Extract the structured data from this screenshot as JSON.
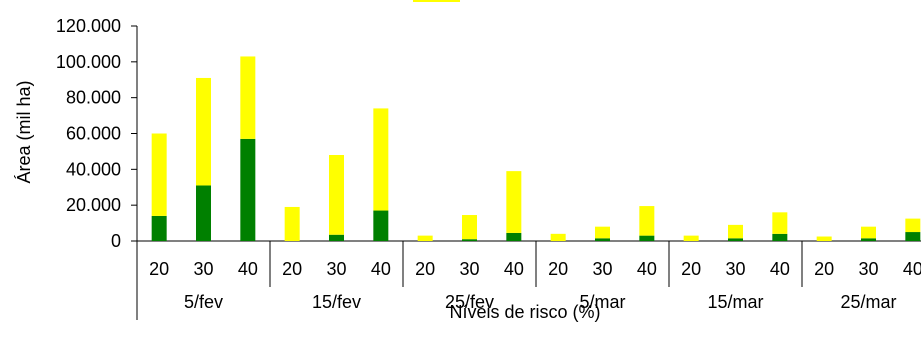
{
  "chart_data": {
    "type": "bar",
    "stacked": true,
    "ylabel": "Área (mil ha)",
    "xlabel": "Níveis de risco (%)",
    "ylim": [
      0,
      120000
    ],
    "y_ticks": [
      "0",
      "20.000",
      "40.000",
      "60.000",
      "80.000",
      "100.000",
      "120.000"
    ],
    "y_tick_values": [
      0,
      20000,
      40000,
      60000,
      80000,
      100000,
      120000
    ],
    "grid": false,
    "groups": [
      "5/fev",
      "15/fev",
      "25/fev",
      "5/mar",
      "15/mar",
      "25/mar"
    ],
    "levels": [
      "20",
      "30",
      "40"
    ],
    "series": [
      {
        "color": "#008000",
        "values": [
          14000,
          31000,
          57000,
          0,
          3500,
          17000,
          0,
          1000,
          4500,
          0,
          1500,
          3000,
          0,
          1500,
          4000,
          0,
          1500,
          5000
        ]
      },
      {
        "color": "#FFFF00",
        "values": [
          46000,
          60000,
          46000,
          19000,
          44500,
          57000,
          3000,
          13500,
          34500,
          4000,
          6500,
          16500,
          3000,
          7500,
          12000,
          2500,
          6500,
          7500
        ]
      }
    ]
  }
}
